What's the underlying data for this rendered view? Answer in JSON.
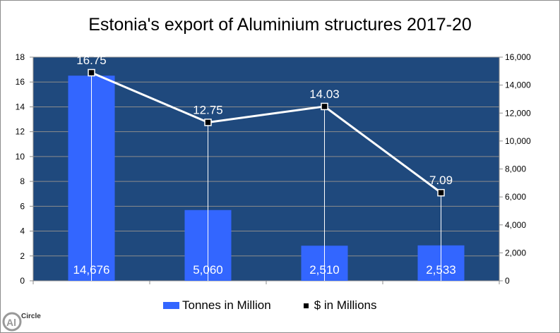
{
  "chart_data": {
    "type": "bar+line",
    "title": "Estonia's export of Aluminium structures 2017-20",
    "categories": [
      "",
      "",
      "",
      ""
    ],
    "series": [
      {
        "name": "Tonnes in Million",
        "type": "bar",
        "axis": "right",
        "values": [
          14676,
          5060,
          2510,
          2533
        ],
        "labels": [
          "14,676",
          "5,060",
          "2,510",
          "2,533"
        ],
        "color": "#3366ff"
      },
      {
        "name": "$ in Millions",
        "type": "line",
        "axis": "left",
        "values": [
          16.75,
          12.75,
          14.03,
          7.09
        ],
        "labels": [
          "16.75",
          "12.75",
          "14.03",
          "7.09"
        ],
        "color": "#ffffff",
        "marker_color": "#000000"
      }
    ],
    "left_axis": {
      "range": [
        0,
        18
      ],
      "ticks": [
        "0",
        "2",
        "4",
        "6",
        "8",
        "10",
        "12",
        "14",
        "16",
        "18"
      ]
    },
    "right_axis": {
      "range": [
        0,
        16000
      ],
      "ticks": [
        "0",
        "2,000",
        "4,000",
        "6,000",
        "8,000",
        "10,000",
        "12,000",
        "14,000",
        "16,000"
      ]
    },
    "grid": true,
    "plot_background": "#1f497d",
    "legend_placement": "bottom"
  },
  "logo": {
    "text": "AlCircle"
  }
}
